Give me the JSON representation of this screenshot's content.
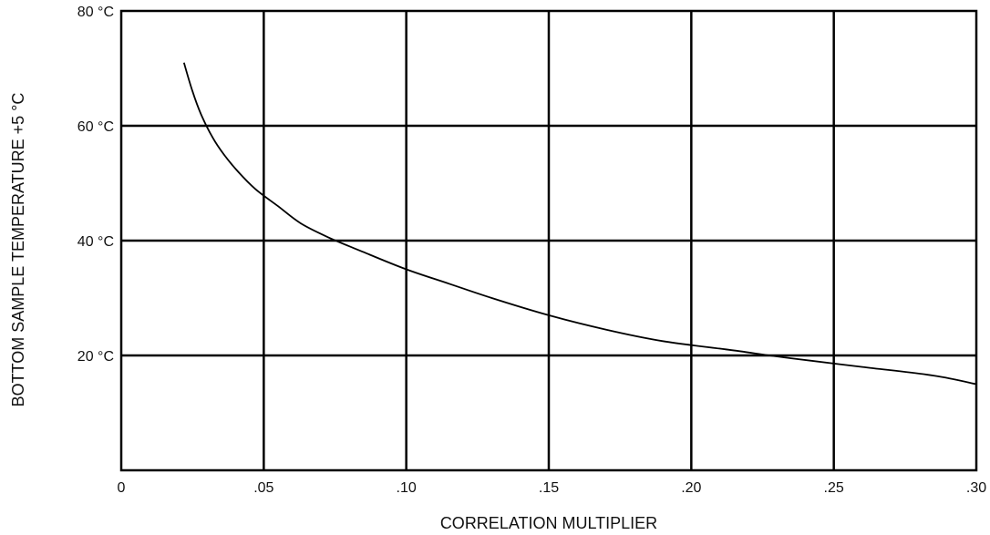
{
  "chart_data": {
    "type": "line",
    "title": "",
    "xlabel": "CORRELATION MULTIPLIER",
    "ylabel": "BOTTOM SAMPLE TEMPERATURE +5 °C",
    "xlim": [
      0,
      0.3
    ],
    "ylim": [
      0,
      80
    ],
    "grid": true,
    "x_ticks": [
      {
        "value": 0,
        "label": "0"
      },
      {
        "value": 0.05,
        "label": ".05"
      },
      {
        "value": 0.1,
        "label": ".10"
      },
      {
        "value": 0.15,
        "label": ".15"
      },
      {
        "value": 0.2,
        "label": ".20"
      },
      {
        "value": 0.25,
        "label": ".25"
      },
      {
        "value": 0.3,
        "label": ".30"
      }
    ],
    "y_ticks": [
      {
        "value": 80,
        "label": "80 °C"
      },
      {
        "value": 60,
        "label": "60 °C"
      },
      {
        "value": 40,
        "label": "40 °C"
      },
      {
        "value": 20,
        "label": "20 °C"
      }
    ],
    "series": [
      {
        "color": "#000000",
        "x": [
          0.022,
          0.025,
          0.028,
          0.032,
          0.036,
          0.041,
          0.047,
          0.055,
          0.063,
          0.073,
          0.085,
          0.1,
          0.115,
          0.13,
          0.15,
          0.17,
          0.19,
          0.213,
          0.235,
          0.26,
          0.285,
          0.3
        ],
        "y": [
          71,
          66,
          62,
          58,
          55,
          52,
          49,
          46,
          43,
          40.5,
          38,
          35,
          32.5,
          30,
          27,
          24.5,
          22.5,
          21,
          19.5,
          18,
          16.5,
          15
        ]
      }
    ]
  }
}
